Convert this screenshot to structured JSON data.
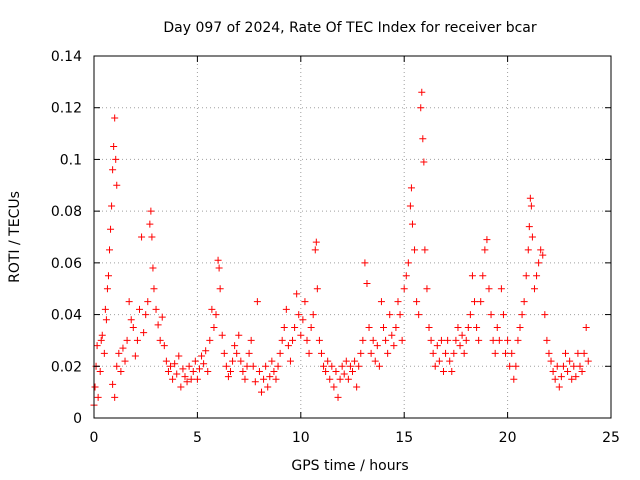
{
  "chart_data": {
    "type": "scatter",
    "title": "Day 097 of 2024, Rate Of TEC Index for receiver bcar",
    "xlabel": "GPS time / hours",
    "ylabel": "ROTI / TECUs",
    "xlim": [
      0,
      25
    ],
    "ylim": [
      0,
      0.14
    ],
    "x_ticks": [
      "0",
      "5",
      "10",
      "15",
      "20",
      "25"
    ],
    "y_ticks": [
      "0",
      "0.02",
      "0.04",
      "0.06",
      "0.08",
      "0.1",
      "0.12",
      "0.14"
    ],
    "grid": true,
    "marker": "+",
    "colors": {
      "points": "#ff0000",
      "grid": "#a0a0a0",
      "axes": "#000000"
    },
    "series": [
      {
        "values": [
          [
            0.0,
            0.005
          ],
          [
            0.05,
            0.012
          ],
          [
            0.1,
            0.02
          ],
          [
            0.15,
            0.028
          ],
          [
            0.2,
            0.008
          ],
          [
            0.3,
            0.018
          ],
          [
            0.35,
            0.03
          ],
          [
            0.4,
            0.032
          ],
          [
            0.5,
            0.025
          ],
          [
            0.55,
            0.042
          ],
          [
            0.6,
            0.038
          ],
          [
            0.65,
            0.05
          ],
          [
            0.7,
            0.055
          ],
          [
            0.75,
            0.065
          ],
          [
            0.8,
            0.073
          ],
          [
            0.85,
            0.082
          ],
          [
            0.9,
            0.096
          ],
          [
            0.95,
            0.105
          ],
          [
            1.0,
            0.116
          ],
          [
            1.05,
            0.1
          ],
          [
            1.1,
            0.09
          ],
          [
            0.9,
            0.013
          ],
          [
            1.0,
            0.008
          ],
          [
            1.1,
            0.02
          ],
          [
            1.2,
            0.025
          ],
          [
            1.3,
            0.018
          ],
          [
            1.4,
            0.027
          ],
          [
            1.5,
            0.022
          ],
          [
            1.6,
            0.03
          ],
          [
            1.7,
            0.045
          ],
          [
            1.8,
            0.038
          ],
          [
            1.9,
            0.035
          ],
          [
            2.0,
            0.024
          ],
          [
            2.1,
            0.03
          ],
          [
            2.2,
            0.042
          ],
          [
            2.3,
            0.07
          ],
          [
            2.4,
            0.033
          ],
          [
            2.5,
            0.04
          ],
          [
            2.6,
            0.045
          ],
          [
            2.7,
            0.075
          ],
          [
            2.75,
            0.08
          ],
          [
            2.8,
            0.07
          ],
          [
            2.85,
            0.058
          ],
          [
            2.9,
            0.05
          ],
          [
            3.0,
            0.042
          ],
          [
            3.1,
            0.036
          ],
          [
            3.2,
            0.03
          ],
          [
            3.3,
            0.039
          ],
          [
            3.4,
            0.028
          ],
          [
            3.5,
            0.022
          ],
          [
            3.6,
            0.018
          ],
          [
            3.7,
            0.02
          ],
          [
            3.8,
            0.015
          ],
          [
            3.9,
            0.021
          ],
          [
            4.0,
            0.017
          ],
          [
            4.1,
            0.024
          ],
          [
            4.2,
            0.012
          ],
          [
            4.3,
            0.019
          ],
          [
            4.4,
            0.016
          ],
          [
            4.5,
            0.014
          ],
          [
            4.6,
            0.02
          ],
          [
            4.7,
            0.015
          ],
          [
            4.8,
            0.018
          ],
          [
            4.9,
            0.022
          ],
          [
            5.0,
            0.015
          ],
          [
            5.1,
            0.019
          ],
          [
            5.2,
            0.024
          ],
          [
            5.3,
            0.021
          ],
          [
            5.4,
            0.026
          ],
          [
            5.5,
            0.018
          ],
          [
            5.6,
            0.03
          ],
          [
            5.7,
            0.042
          ],
          [
            5.8,
            0.035
          ],
          [
            5.9,
            0.04
          ],
          [
            6.0,
            0.061
          ],
          [
            6.05,
            0.058
          ],
          [
            6.1,
            0.05
          ],
          [
            6.2,
            0.032
          ],
          [
            6.3,
            0.025
          ],
          [
            6.4,
            0.02
          ],
          [
            6.5,
            0.016
          ],
          [
            6.6,
            0.018
          ],
          [
            6.7,
            0.022
          ],
          [
            6.8,
            0.028
          ],
          [
            6.9,
            0.025
          ],
          [
            7.0,
            0.032
          ],
          [
            7.1,
            0.022
          ],
          [
            7.2,
            0.018
          ],
          [
            7.3,
            0.015
          ],
          [
            7.4,
            0.02
          ],
          [
            7.5,
            0.025
          ],
          [
            7.6,
            0.03
          ],
          [
            7.7,
            0.02
          ],
          [
            7.8,
            0.014
          ],
          [
            7.9,
            0.045
          ],
          [
            8.0,
            0.018
          ],
          [
            8.1,
            0.01
          ],
          [
            8.2,
            0.015
          ],
          [
            8.3,
            0.02
          ],
          [
            8.4,
            0.012
          ],
          [
            8.5,
            0.016
          ],
          [
            8.6,
            0.022
          ],
          [
            8.7,
            0.018
          ],
          [
            8.8,
            0.015
          ],
          [
            8.9,
            0.02
          ],
          [
            9.0,
            0.025
          ],
          [
            9.1,
            0.03
          ],
          [
            9.2,
            0.035
          ],
          [
            9.3,
            0.042
          ],
          [
            9.4,
            0.028
          ],
          [
            9.5,
            0.022
          ],
          [
            9.6,
            0.03
          ],
          [
            9.7,
            0.035
          ],
          [
            9.8,
            0.048
          ],
          [
            9.9,
            0.04
          ],
          [
            10.0,
            0.032
          ],
          [
            10.1,
            0.038
          ],
          [
            10.2,
            0.045
          ],
          [
            10.3,
            0.03
          ],
          [
            10.4,
            0.025
          ],
          [
            10.5,
            0.035
          ],
          [
            10.6,
            0.04
          ],
          [
            10.7,
            0.065
          ],
          [
            10.75,
            0.068
          ],
          [
            10.8,
            0.05
          ],
          [
            10.9,
            0.03
          ],
          [
            11.0,
            0.025
          ],
          [
            11.1,
            0.02
          ],
          [
            11.2,
            0.018
          ],
          [
            11.3,
            0.022
          ],
          [
            11.4,
            0.015
          ],
          [
            11.5,
            0.02
          ],
          [
            11.6,
            0.012
          ],
          [
            11.7,
            0.018
          ],
          [
            11.8,
            0.008
          ],
          [
            11.9,
            0.015
          ],
          [
            12.0,
            0.02
          ],
          [
            12.1,
            0.017
          ],
          [
            12.2,
            0.022
          ],
          [
            12.3,
            0.015
          ],
          [
            12.4,
            0.02
          ],
          [
            12.5,
            0.018
          ],
          [
            12.6,
            0.022
          ],
          [
            12.7,
            0.012
          ],
          [
            12.8,
            0.02
          ],
          [
            12.9,
            0.025
          ],
          [
            13.0,
            0.03
          ],
          [
            13.1,
            0.06
          ],
          [
            13.2,
            0.052
          ],
          [
            13.3,
            0.035
          ],
          [
            13.4,
            0.025
          ],
          [
            13.5,
            0.03
          ],
          [
            13.6,
            0.022
          ],
          [
            13.7,
            0.028
          ],
          [
            13.8,
            0.02
          ],
          [
            13.9,
            0.045
          ],
          [
            14.0,
            0.035
          ],
          [
            14.1,
            0.03
          ],
          [
            14.2,
            0.025
          ],
          [
            14.3,
            0.04
          ],
          [
            14.4,
            0.032
          ],
          [
            14.5,
            0.028
          ],
          [
            14.6,
            0.035
          ],
          [
            14.7,
            0.045
          ],
          [
            14.8,
            0.04
          ],
          [
            14.9,
            0.03
          ],
          [
            15.0,
            0.05
          ],
          [
            15.1,
            0.055
          ],
          [
            15.2,
            0.06
          ],
          [
            15.3,
            0.082
          ],
          [
            15.35,
            0.089
          ],
          [
            15.4,
            0.075
          ],
          [
            15.5,
            0.065
          ],
          [
            15.6,
            0.045
          ],
          [
            15.7,
            0.04
          ],
          [
            15.8,
            0.12
          ],
          [
            15.85,
            0.126
          ],
          [
            15.9,
            0.108
          ],
          [
            15.95,
            0.099
          ],
          [
            16.0,
            0.065
          ],
          [
            16.1,
            0.05
          ],
          [
            16.2,
            0.035
          ],
          [
            16.3,
            0.03
          ],
          [
            16.4,
            0.025
          ],
          [
            16.5,
            0.02
          ],
          [
            16.6,
            0.028
          ],
          [
            16.7,
            0.022
          ],
          [
            16.8,
            0.03
          ],
          [
            16.9,
            0.018
          ],
          [
            17.0,
            0.025
          ],
          [
            17.1,
            0.03
          ],
          [
            17.2,
            0.022
          ],
          [
            17.3,
            0.018
          ],
          [
            17.4,
            0.025
          ],
          [
            17.5,
            0.03
          ],
          [
            17.6,
            0.035
          ],
          [
            17.7,
            0.028
          ],
          [
            17.8,
            0.032
          ],
          [
            17.9,
            0.025
          ],
          [
            18.0,
            0.03
          ],
          [
            18.1,
            0.035
          ],
          [
            18.2,
            0.04
          ],
          [
            18.3,
            0.055
          ],
          [
            18.4,
            0.045
          ],
          [
            18.5,
            0.035
          ],
          [
            18.6,
            0.03
          ],
          [
            18.7,
            0.045
          ],
          [
            18.8,
            0.055
          ],
          [
            18.9,
            0.065
          ],
          [
            19.0,
            0.069
          ],
          [
            19.1,
            0.05
          ],
          [
            19.2,
            0.04
          ],
          [
            19.3,
            0.03
          ],
          [
            19.4,
            0.025
          ],
          [
            19.5,
            0.035
          ],
          [
            19.6,
            0.03
          ],
          [
            19.7,
            0.05
          ],
          [
            19.8,
            0.04
          ],
          [
            19.9,
            0.025
          ],
          [
            20.0,
            0.03
          ],
          [
            20.1,
            0.02
          ],
          [
            20.2,
            0.025
          ],
          [
            20.3,
            0.015
          ],
          [
            20.4,
            0.02
          ],
          [
            20.5,
            0.03
          ],
          [
            20.6,
            0.035
          ],
          [
            20.7,
            0.04
          ],
          [
            20.8,
            0.045
          ],
          [
            20.9,
            0.055
          ],
          [
            21.0,
            0.065
          ],
          [
            21.05,
            0.074
          ],
          [
            21.1,
            0.085
          ],
          [
            21.15,
            0.082
          ],
          [
            21.2,
            0.07
          ],
          [
            21.3,
            0.05
          ],
          [
            21.4,
            0.055
          ],
          [
            21.5,
            0.06
          ],
          [
            21.6,
            0.065
          ],
          [
            21.7,
            0.063
          ],
          [
            21.8,
            0.04
          ],
          [
            21.9,
            0.03
          ],
          [
            22.0,
            0.025
          ],
          [
            22.1,
            0.022
          ],
          [
            22.2,
            0.018
          ],
          [
            22.3,
            0.015
          ],
          [
            22.4,
            0.02
          ],
          [
            22.5,
            0.012
          ],
          [
            22.6,
            0.016
          ],
          [
            22.7,
            0.02
          ],
          [
            22.8,
            0.025
          ],
          [
            22.9,
            0.018
          ],
          [
            23.0,
            0.022
          ],
          [
            23.1,
            0.015
          ],
          [
            23.2,
            0.02
          ],
          [
            23.3,
            0.016
          ],
          [
            23.4,
            0.025
          ],
          [
            23.5,
            0.02
          ],
          [
            23.6,
            0.018
          ],
          [
            23.7,
            0.025
          ],
          [
            23.8,
            0.035
          ],
          [
            23.9,
            0.022
          ]
        ]
      }
    ]
  }
}
